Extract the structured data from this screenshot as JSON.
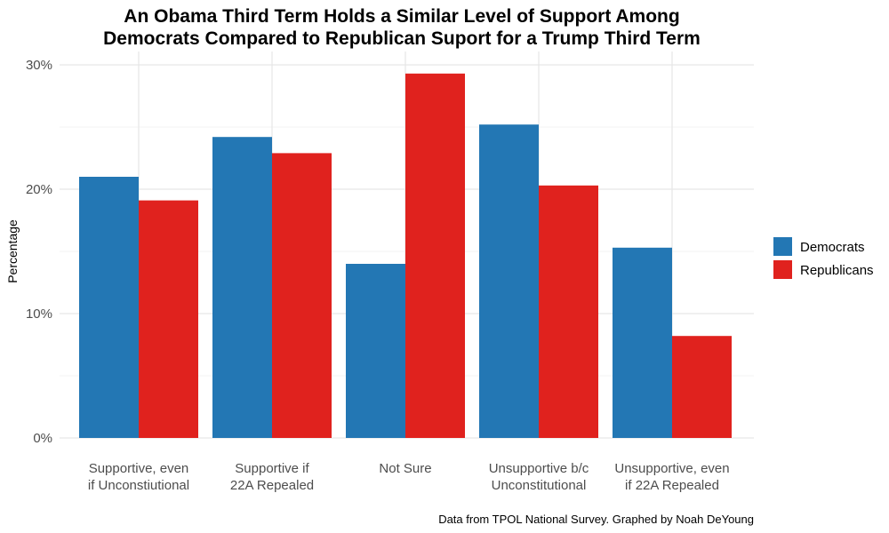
{
  "chart_data": {
    "type": "bar",
    "title_lines": [
      "An Obama Third Term Holds a Similar Level of Support Among",
      "Democrats Compared to Republican Suport for a Trump Third Term"
    ],
    "ylabel": "Percentage",
    "xlabel": "",
    "ylim": [
      0,
      30
    ],
    "yticks": [
      0,
      10,
      20,
      30
    ],
    "ytick_labels": [
      "0%",
      "10%",
      "20%",
      "30%"
    ],
    "categories": [
      [
        "Supportive, even",
        "if Unconstiutional"
      ],
      [
        "Supportive if",
        "22A Repealed"
      ],
      [
        "Not Sure"
      ],
      [
        "Unsupportive b/c",
        "Unconstitutional"
      ],
      [
        "Unsupportive, even",
        "if 22A Repealed"
      ]
    ],
    "series": [
      {
        "name": "Democrats",
        "color": "#2377b4",
        "values": [
          21.0,
          24.2,
          14.0,
          25.2,
          15.3
        ]
      },
      {
        "name": "Republicans",
        "color": "#e0221e",
        "values": [
          19.1,
          22.9,
          29.3,
          20.3,
          8.2
        ]
      }
    ],
    "grid": true,
    "legend_position": "right",
    "caption": "Data from TPOL National Survey. Graphed by Noah DeYoung"
  }
}
